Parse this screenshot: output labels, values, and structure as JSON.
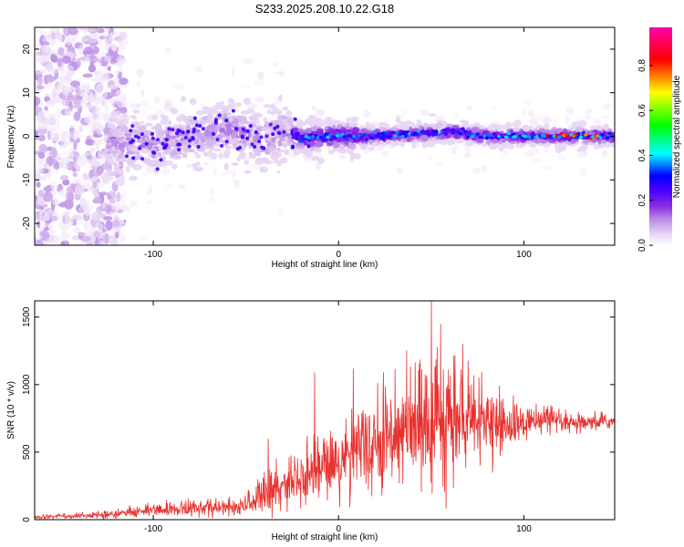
{
  "title": "S233.2025.208.10.22.G18",
  "chart_data": [
    {
      "type": "heatmap",
      "xlabel": "Height of straight line (km)",
      "ylabel": "Frequency (Hz)",
      "xlim": [
        -164,
        149
      ],
      "ylim": [
        -25,
        25
      ],
      "xticks": [
        -100,
        0,
        100
      ],
      "yticks": [
        -20,
        -10,
        0,
        10,
        20
      ],
      "colorbar": {
        "label": "Normalized spectral amplitude",
        "range": [
          0,
          0.97
        ],
        "ticks": [
          0.0,
          0.2,
          0.4,
          0.6,
          0.8
        ],
        "colormap": [
          "#ffffff",
          "#e8d6f4",
          "#b98be6",
          "#8a2be2",
          "#4b00ff",
          "#0000ff",
          "#00ffff",
          "#00ff00",
          "#ffff00",
          "#ff0000",
          "#ff00aa"
        ]
      },
      "ridge": {
        "description_points_x": [
          -120,
          -100,
          -80,
          -60,
          -40,
          -30,
          -20,
          0,
          20,
          40,
          60,
          80,
          100,
          120,
          140
        ],
        "description_points_y": [
          -1,
          -2,
          0,
          2,
          -1,
          1,
          -0.5,
          0,
          0,
          0.5,
          1,
          0,
          0,
          0,
          0
        ]
      }
    },
    {
      "type": "line",
      "xlabel": "Height of straight line (km)",
      "ylabel": "SNR (10 * v/v)",
      "xlim": [
        -164,
        149
      ],
      "ylim": [
        0,
        1620
      ],
      "xticks": [
        -100,
        0,
        100
      ],
      "yticks": [
        0,
        500,
        1000,
        1500
      ],
      "color": "#e8312e",
      "envelope": {
        "x": [
          -164,
          -140,
          -120,
          -100,
          -80,
          -60,
          -50,
          -40,
          -30,
          -20,
          -10,
          0,
          10,
          20,
          30,
          40,
          50,
          60,
          70,
          80,
          90,
          100,
          110,
          120,
          130,
          140,
          149
        ],
        "mean": [
          20,
          25,
          40,
          70,
          80,
          85,
          100,
          180,
          250,
          330,
          380,
          420,
          480,
          560,
          620,
          650,
          680,
          700,
          720,
          700,
          690,
          700,
          720,
          710,
          700,
          720,
          730
        ],
        "spread": [
          15,
          15,
          25,
          40,
          50,
          50,
          60,
          120,
          160,
          200,
          220,
          240,
          260,
          300,
          320,
          340,
          360,
          330,
          280,
          220,
          160,
          120,
          90,
          70,
          60,
          50,
          50
        ]
      },
      "peaks": [
        {
          "x": 50,
          "y": 1620
        },
        {
          "x": -13,
          "y": 1090
        },
        {
          "x": 8,
          "y": 1120
        },
        {
          "x": -38,
          "y": 600
        },
        {
          "x": 55,
          "y": 1450
        },
        {
          "x": 67,
          "y": 1300
        },
        {
          "x": 58,
          "y": 80
        }
      ]
    }
  ]
}
